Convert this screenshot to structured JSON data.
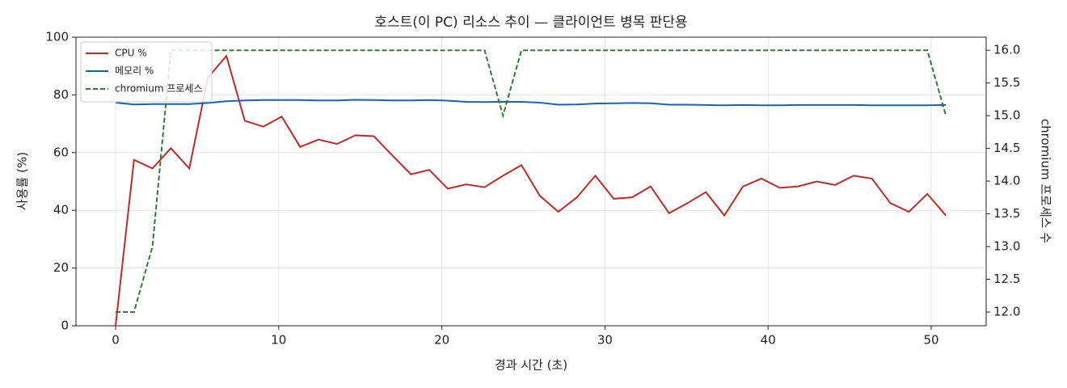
{
  "chart_data": {
    "type": "line",
    "title": "호스트(이 PC) 리소스 추이 — 클라이언트 병목 판단용",
    "xlabel": "경과 시간 (초)",
    "ylabel": "사용률 (%)",
    "y2label": "chromium 프로세스 수",
    "x": [
      0,
      1.13,
      2.26,
      3.39,
      4.52,
      5.66,
      6.79,
      7.92,
      9.05,
      10.18,
      11.31,
      12.44,
      13.57,
      14.7,
      15.83,
      16.97,
      18.1,
      19.23,
      20.36,
      21.49,
      22.62,
      23.75,
      24.88,
      26.01,
      27.14,
      28.28,
      29.41,
      30.54,
      31.67,
      32.8,
      33.93,
      35.06,
      36.19,
      37.32,
      38.45,
      39.59,
      40.72,
      41.85,
      42.98,
      44.11,
      45.24,
      46.37,
      47.5,
      48.63,
      49.76,
      50.9
    ],
    "series": [
      {
        "name": "CPU %",
        "color": "#c62828",
        "values": [
          0,
          57.5,
          54.5,
          61.5,
          54.5,
          86,
          93.5,
          71,
          69,
          72.5,
          62,
          64.5,
          63,
          66,
          65.7,
          59,
          52.5,
          54,
          47.5,
          49,
          48,
          52,
          55.7,
          45,
          39.5,
          44.5,
          52,
          44,
          44.5,
          48.3,
          39,
          42.5,
          46.3,
          38.2,
          48.2,
          51,
          47.8,
          48.3,
          50,
          48.8,
          52,
          51,
          42.5,
          39.5,
          45.7,
          38.2
        ]
      },
      {
        "name": "메모리 %",
        "color": "#1565c0",
        "values": [
          77.3,
          76.7,
          76.8,
          76.8,
          76.8,
          77.2,
          77.8,
          78.1,
          78.2,
          78.2,
          78.2,
          78.1,
          78.1,
          78.3,
          78.2,
          78.1,
          78.1,
          78.2,
          78.0,
          77.6,
          77.5,
          77.6,
          77.6,
          77.3,
          76.6,
          76.7,
          77.0,
          77.1,
          77.2,
          77.1,
          76.6,
          76.6,
          76.5,
          76.4,
          76.5,
          76.4,
          76.4,
          76.5,
          76.5,
          76.5,
          76.5,
          76.4,
          76.4,
          76.4,
          76.4,
          76.5
        ]
      },
      {
        "name": "chromium 프로세스",
        "color": "#2e7d32",
        "dashed": true,
        "axis": "y2",
        "values": [
          12,
          12,
          13,
          16,
          16,
          16,
          16,
          16,
          16,
          16,
          16,
          16,
          16,
          16,
          16,
          16,
          16,
          16,
          16,
          16,
          16,
          15,
          16,
          16,
          16,
          16,
          16,
          16,
          16,
          16,
          16,
          16,
          16,
          16,
          16,
          16,
          16,
          16,
          16,
          16,
          16,
          16,
          16,
          16,
          16,
          15
        ]
      }
    ],
    "xlim": [
      -2.43,
      53.37
    ],
    "xticks": [
      0,
      10,
      20,
      30,
      40,
      50
    ],
    "ylim": [
      0,
      100
    ],
    "yticks": [
      0,
      20,
      40,
      60,
      80,
      100
    ],
    "y2lim": [
      11.79,
      16.2
    ],
    "y2ticks": [
      {
        "value": 12,
        "label": "12.0"
      },
      {
        "value": 12.5,
        "label": "12.5"
      },
      {
        "value": 13,
        "label": "13.0"
      },
      {
        "value": 13.5,
        "label": "13.5"
      },
      {
        "value": 14,
        "label": "14.0"
      },
      {
        "value": 14.5,
        "label": "14.5"
      },
      {
        "value": 15,
        "label": "15.0"
      },
      {
        "value": 15.5,
        "label": "15.5"
      },
      {
        "value": 16,
        "label": "16.0"
      }
    ],
    "grid": true,
    "legend": "upper-left"
  }
}
